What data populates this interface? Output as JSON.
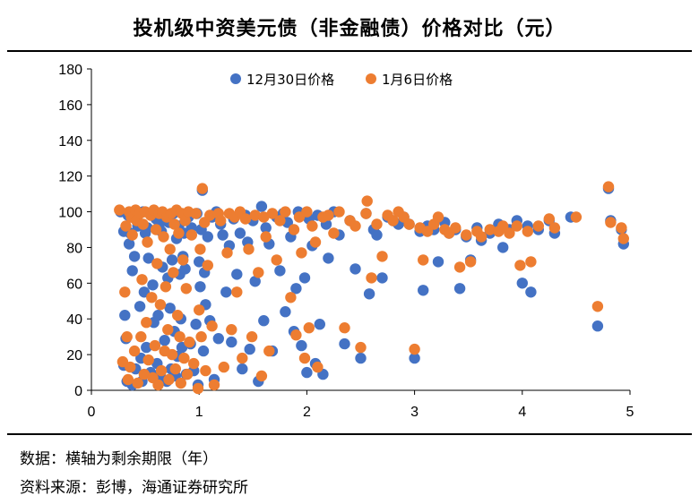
{
  "title": "投机级中资美元债（非金融债）价格对比（元）",
  "notes": {
    "data_note": "数据：横轴为剩余期限（年）",
    "source": "资料来源：彭博，海通证券研究所"
  },
  "chart_data": {
    "type": "scatter",
    "xlim": [
      0,
      5
    ],
    "ylim": [
      0,
      180
    ],
    "x_ticks": [
      0,
      1,
      2,
      3,
      4,
      5
    ],
    "y_ticks": [
      0,
      20,
      40,
      60,
      80,
      100,
      120,
      140,
      160,
      180
    ],
    "grid": false,
    "legend_position": "top-center",
    "series": [
      {
        "name": "12月30日价格",
        "color": "#4472C4",
        "points": [
          [
            0.27,
            100
          ],
          [
            0.3,
            89
          ],
          [
            0.3,
            14
          ],
          [
            0.31,
            42
          ],
          [
            0.32,
            29
          ],
          [
            0.33,
            5
          ],
          [
            0.34,
            98
          ],
          [
            0.35,
            82
          ],
          [
            0.36,
            88
          ],
          [
            0.37,
            97
          ],
          [
            0.38,
            67
          ],
          [
            0.38,
            3
          ],
          [
            0.4,
            75
          ],
          [
            0.41,
            12
          ],
          [
            0.42,
            96
          ],
          [
            0.43,
            92
          ],
          [
            0.45,
            47
          ],
          [
            0.46,
            18
          ],
          [
            0.47,
            5
          ],
          [
            0.48,
            100
          ],
          [
            0.49,
            55
          ],
          [
            0.5,
            88
          ],
          [
            0.51,
            24
          ],
          [
            0.52,
            91
          ],
          [
            0.53,
            74
          ],
          [
            0.55,
            10
          ],
          [
            0.56,
            99
          ],
          [
            0.57,
            59
          ],
          [
            0.58,
            38
          ],
          [
            0.6,
            96
          ],
          [
            0.61,
            15
          ],
          [
            0.62,
            42
          ],
          [
            0.63,
            93
          ],
          [
            0.64,
            8
          ],
          [
            0.65,
            89
          ],
          [
            0.66,
            69
          ],
          [
            0.67,
            97
          ],
          [
            0.68,
            28
          ],
          [
            0.7,
            5
          ],
          [
            0.71,
            63
          ],
          [
            0.72,
            94
          ],
          [
            0.73,
            46
          ],
          [
            0.74,
            12
          ],
          [
            0.75,
            73
          ],
          [
            0.76,
            99
          ],
          [
            0.77,
            33
          ],
          [
            0.78,
            8
          ],
          [
            0.79,
            85
          ],
          [
            0.8,
            19
          ],
          [
            0.81,
            92
          ],
          [
            0.82,
            65
          ],
          [
            0.83,
            40
          ],
          [
            0.84,
            24
          ],
          [
            0.85,
            75
          ],
          [
            0.86,
            88
          ],
          [
            0.87,
            68
          ],
          [
            0.88,
            9
          ],
          [
            0.9,
            97
          ],
          [
            0.92,
            26
          ],
          [
            0.93,
            91
          ],
          [
            0.95,
            11
          ],
          [
            0.97,
            37
          ],
          [
            0.98,
            99
          ],
          [
            0.99,
            3
          ],
          [
            1.0,
            72
          ],
          [
            1.01,
            58
          ],
          [
            1.02,
            90
          ],
          [
            1.03,
            112
          ],
          [
            1.04,
            22
          ],
          [
            1.05,
            66
          ],
          [
            1.06,
            48
          ],
          [
            1.08,
            86
          ],
          [
            1.1,
            39
          ],
          [
            1.12,
            97
          ],
          [
            1.14,
            6
          ],
          [
            1.16,
            100
          ],
          [
            1.18,
            29
          ],
          [
            1.2,
            93
          ],
          [
            1.22,
            87
          ],
          [
            1.25,
            55
          ],
          [
            1.28,
            81
          ],
          [
            1.3,
            27
          ],
          [
            1.32,
            96
          ],
          [
            1.35,
            65
          ],
          [
            1.38,
            88
          ],
          [
            1.4,
            12
          ],
          [
            1.43,
            98
          ],
          [
            1.45,
            83
          ],
          [
            1.47,
            23
          ],
          [
            1.5,
            95
          ],
          [
            1.52,
            61
          ],
          [
            1.55,
            5
          ],
          [
            1.58,
            103
          ],
          [
            1.6,
            39
          ],
          [
            1.62,
            91
          ],
          [
            1.65,
            82
          ],
          [
            1.68,
            22
          ],
          [
            1.72,
            97
          ],
          [
            1.75,
            67
          ],
          [
            1.78,
            99
          ],
          [
            1.8,
            44
          ],
          [
            1.82,
            94
          ],
          [
            1.85,
            86
          ],
          [
            1.88,
            33
          ],
          [
            1.9,
            57
          ],
          [
            1.92,
            100
          ],
          [
            1.95,
            25
          ],
          [
            1.98,
            63
          ],
          [
            2.0,
            10
          ],
          [
            2.02,
            96
          ],
          [
            2.05,
            81
          ],
          [
            2.08,
            15
          ],
          [
            2.1,
            98
          ],
          [
            2.12,
            37
          ],
          [
            2.15,
            9
          ],
          [
            2.18,
            93
          ],
          [
            2.2,
            74
          ],
          [
            2.25,
            100
          ],
          [
            2.3,
            87
          ],
          [
            2.35,
            26
          ],
          [
            2.4,
            95
          ],
          [
            2.45,
            68
          ],
          [
            2.5,
            18
          ],
          [
            2.55,
            99
          ],
          [
            2.58,
            54
          ],
          [
            2.62,
            90
          ],
          [
            2.65,
            87
          ],
          [
            2.7,
            63
          ],
          [
            2.75,
            97
          ],
          [
            2.8,
            95
          ],
          [
            2.85,
            93
          ],
          [
            2.9,
            97
          ],
          [
            2.95,
            93
          ],
          [
            3.0,
            18
          ],
          [
            3.05,
            89
          ],
          [
            3.08,
            56
          ],
          [
            3.12,
            92
          ],
          [
            3.18,
            90
          ],
          [
            3.22,
            72
          ],
          [
            3.28,
            94
          ],
          [
            3.32,
            88
          ],
          [
            3.38,
            90
          ],
          [
            3.42,
            57
          ],
          [
            3.48,
            86
          ],
          [
            3.52,
            73
          ],
          [
            3.58,
            91
          ],
          [
            3.62,
            84
          ],
          [
            3.7,
            88
          ],
          [
            3.78,
            93
          ],
          [
            3.82,
            80
          ],
          [
            3.88,
            90
          ],
          [
            3.95,
            95
          ],
          [
            4.0,
            60
          ],
          [
            4.05,
            92
          ],
          [
            4.08,
            55
          ],
          [
            4.15,
            90
          ],
          [
            4.25,
            95
          ],
          [
            4.3,
            88
          ],
          [
            4.45,
            97
          ],
          [
            4.7,
            36
          ],
          [
            4.8,
            113
          ],
          [
            4.82,
            95
          ],
          [
            4.92,
            90
          ],
          [
            4.94,
            82
          ]
        ]
      },
      {
        "name": "1月6日价格",
        "color": "#ED7D31",
        "points": [
          [
            0.26,
            101
          ],
          [
            0.29,
            16
          ],
          [
            0.31,
            55
          ],
          [
            0.32,
            92
          ],
          [
            0.33,
            30
          ],
          [
            0.34,
            6
          ],
          [
            0.35,
            100
          ],
          [
            0.36,
            13
          ],
          [
            0.37,
            97
          ],
          [
            0.38,
            87
          ],
          [
            0.4,
            22
          ],
          [
            0.41,
            101
          ],
          [
            0.42,
            95
          ],
          [
            0.43,
            4
          ],
          [
            0.45,
            99
          ],
          [
            0.46,
            30
          ],
          [
            0.47,
            62
          ],
          [
            0.48,
            93
          ],
          [
            0.49,
            9
          ],
          [
            0.5,
            100
          ],
          [
            0.51,
            38
          ],
          [
            0.52,
            83
          ],
          [
            0.53,
            17
          ],
          [
            0.55,
            98
          ],
          [
            0.56,
            52
          ],
          [
            0.57,
            7
          ],
          [
            0.58,
            101
          ],
          [
            0.59,
            25
          ],
          [
            0.6,
            90
          ],
          [
            0.61,
            71
          ],
          [
            0.62,
            3
          ],
          [
            0.63,
            99
          ],
          [
            0.64,
            48
          ],
          [
            0.65,
            11
          ],
          [
            0.66,
            100
          ],
          [
            0.67,
            86
          ],
          [
            0.68,
            22
          ],
          [
            0.69,
            58
          ],
          [
            0.7,
            97
          ],
          [
            0.71,
            34
          ],
          [
            0.72,
            6
          ],
          [
            0.73,
            79
          ],
          [
            0.74,
            99
          ],
          [
            0.75,
            20
          ],
          [
            0.76,
            66
          ],
          [
            0.77,
            93
          ],
          [
            0.78,
            12
          ],
          [
            0.79,
            101
          ],
          [
            0.8,
            42
          ],
          [
            0.81,
            88
          ],
          [
            0.82,
            30
          ],
          [
            0.83,
            4
          ],
          [
            0.84,
            99
          ],
          [
            0.85,
            73
          ],
          [
            0.86,
            18
          ],
          [
            0.87,
            95
          ],
          [
            0.88,
            57
          ],
          [
            0.89,
            9
          ],
          [
            0.9,
            100
          ],
          [
            0.91,
            27
          ],
          [
            0.93,
            87
          ],
          [
            0.95,
            15
          ],
          [
            0.97,
            99
          ],
          [
            0.99,
            1
          ],
          [
            1.0,
            45
          ],
          [
            1.01,
            79
          ],
          [
            1.02,
            30
          ],
          [
            1.03,
            113
          ],
          [
            1.05,
            94
          ],
          [
            1.06,
            11
          ],
          [
            1.08,
            70
          ],
          [
            1.1,
            98
          ],
          [
            1.12,
            36
          ],
          [
            1.14,
            3
          ],
          [
            1.18,
            99
          ],
          [
            1.2,
            95
          ],
          [
            1.23,
            13
          ],
          [
            1.26,
            77
          ],
          [
            1.28,
            99
          ],
          [
            1.3,
            34
          ],
          [
            1.33,
            97
          ],
          [
            1.35,
            55
          ],
          [
            1.38,
            100
          ],
          [
            1.4,
            18
          ],
          [
            1.43,
            96
          ],
          [
            1.46,
            79
          ],
          [
            1.49,
            30
          ],
          [
            1.52,
            98
          ],
          [
            1.55,
            66
          ],
          [
            1.58,
            8
          ],
          [
            1.6,
            97
          ],
          [
            1.62,
            86
          ],
          [
            1.65,
            22
          ],
          [
            1.68,
            99
          ],
          [
            1.72,
            73
          ],
          [
            1.75,
            95
          ],
          [
            1.8,
            100
          ],
          [
            1.85,
            52
          ],
          [
            1.88,
            90
          ],
          [
            1.9,
            31
          ],
          [
            1.93,
            97
          ],
          [
            1.95,
            77
          ],
          [
            1.98,
            18
          ],
          [
            2.0,
            100
          ],
          [
            2.02,
            35
          ],
          [
            2.05,
            92
          ],
          [
            2.08,
            83
          ],
          [
            2.1,
            13
          ],
          [
            2.15,
            97
          ],
          [
            2.2,
            98
          ],
          [
            2.25,
            88
          ],
          [
            2.3,
            100
          ],
          [
            2.35,
            35
          ],
          [
            2.4,
            95
          ],
          [
            2.45,
            92
          ],
          [
            2.5,
            24
          ],
          [
            2.55,
            99
          ],
          [
            2.56,
            106
          ],
          [
            2.6,
            63
          ],
          [
            2.65,
            93
          ],
          [
            2.7,
            75
          ],
          [
            2.75,
            98
          ],
          [
            2.8,
            95
          ],
          [
            2.85,
            100
          ],
          [
            2.9,
            97
          ],
          [
            2.95,
            93
          ],
          [
            3.0,
            23
          ],
          [
            3.05,
            91
          ],
          [
            3.08,
            73
          ],
          [
            3.12,
            89
          ],
          [
            3.18,
            93
          ],
          [
            3.22,
            97
          ],
          [
            3.28,
            90
          ],
          [
            3.32,
            88
          ],
          [
            3.38,
            91
          ],
          [
            3.42,
            69
          ],
          [
            3.48,
            87
          ],
          [
            3.52,
            72
          ],
          [
            3.58,
            89
          ],
          [
            3.62,
            86
          ],
          [
            3.7,
            90
          ],
          [
            3.78,
            89
          ],
          [
            3.82,
            92
          ],
          [
            3.88,
            88
          ],
          [
            3.95,
            92
          ],
          [
            3.98,
            70
          ],
          [
            4.05,
            89
          ],
          [
            4.08,
            72
          ],
          [
            4.15,
            92
          ],
          [
            4.25,
            96
          ],
          [
            4.3,
            91
          ],
          [
            4.5,
            97
          ],
          [
            4.7,
            47
          ],
          [
            4.8,
            114
          ],
          [
            4.82,
            94
          ],
          [
            4.92,
            91
          ],
          [
            4.94,
            85
          ]
        ]
      }
    ]
  }
}
